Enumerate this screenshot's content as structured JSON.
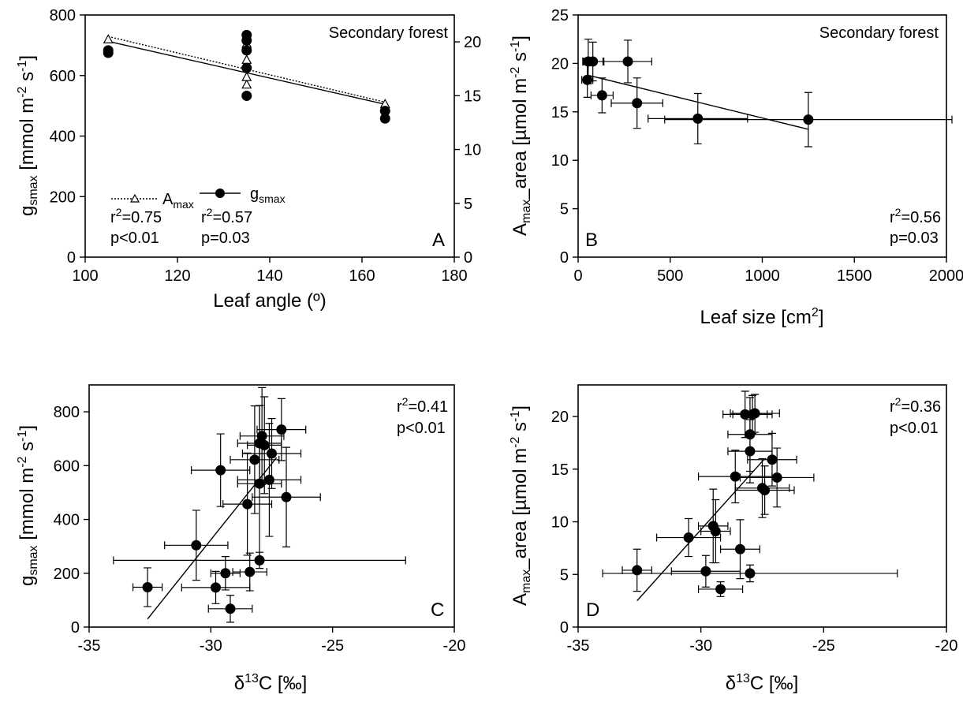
{
  "chart_data": [
    {
      "panel": "A",
      "type": "scatter",
      "panel_label": "A",
      "annotation": "Secondary forest",
      "xlabel": "Leaf angle (º)",
      "ylabel": "g_smax [mmol m-2 s-1]",
      "xlim": [
        100,
        180
      ],
      "ylim": [
        0,
        800
      ],
      "y2lim": [
        0,
        22.5
      ],
      "xticks": [
        100,
        120,
        140,
        160,
        180
      ],
      "yticks": [
        0,
        200,
        400,
        600,
        800
      ],
      "y2ticks": [
        0,
        5,
        10,
        15,
        20
      ],
      "legend": {
        "entries": [
          "A_max",
          "g_smax"
        ],
        "stats": [
          [
            "r²=0.75",
            "p<0.01"
          ],
          [
            "r²=0.57",
            "p=0.03"
          ]
        ],
        "placement": "lower-left"
      },
      "series": [
        {
          "name": "A_max",
          "axis": "right",
          "marker": "open-triangle",
          "points": [
            [
              105,
              20.2
            ],
            [
              135,
              16.0
            ],
            [
              135,
              16.7
            ],
            [
              135,
              18.0
            ],
            [
              135,
              18.3
            ],
            [
              135,
              19.8
            ],
            [
              165,
              14.2
            ]
          ],
          "fit": [
            [
              105,
              20.5
            ],
            [
              165,
              14.4
            ]
          ]
        },
        {
          "name": "g_smax",
          "axis": "left",
          "marker": "filled-circle",
          "points": [
            [
              105,
              675
            ],
            [
              105,
              683
            ],
            [
              135,
              533
            ],
            [
              135,
              625
            ],
            [
              135,
              683
            ],
            [
              135,
              716
            ],
            [
              135,
              734
            ],
            [
              165,
              458
            ],
            [
              165,
              483
            ]
          ],
          "fit": [
            [
              105,
              713
            ],
            [
              165,
              505
            ]
          ]
        }
      ]
    },
    {
      "panel": "B",
      "type": "scatter",
      "panel_label": "B",
      "annotation": "Secondary forest",
      "xlabel": "Leaf size [cm²]",
      "ylabel": "A_max_area [µmol m-2 s-1]",
      "xlim": [
        0,
        2000
      ],
      "ylim": [
        0,
        25
      ],
      "xticks": [
        0,
        500,
        1000,
        1500,
        2000
      ],
      "yticks": [
        0,
        5,
        10,
        15,
        20,
        25
      ],
      "stats": [
        "r²=0.56",
        "p=0.03"
      ],
      "points": [
        {
          "x": 50,
          "y": 18.3,
          "xerr": 30,
          "yerr": 1.8
        },
        {
          "x": 55,
          "y": 20.2,
          "xerr": 25,
          "yerr": 2.3
        },
        {
          "x": 80,
          "y": 20.2,
          "xerr": 55,
          "yerr": 2.0
        },
        {
          "x": 130,
          "y": 16.7,
          "xerr": 60,
          "yerr": 1.8
        },
        {
          "x": 270,
          "y": 20.2,
          "xerr": 130,
          "yerr": 2.2
        },
        {
          "x": 320,
          "y": 15.9,
          "xerr": 140,
          "yerr": 2.6
        },
        {
          "x": 650,
          "y": 14.3,
          "xerr": 270,
          "yerr": 2.6
        },
        {
          "x": 1250,
          "y": 14.2,
          "xerr": 780,
          "yerr": 2.8
        }
      ],
      "fit": [
        [
          50,
          18.8
        ],
        [
          1250,
          13.2
        ]
      ]
    },
    {
      "panel": "C",
      "type": "scatter",
      "panel_label": "C",
      "xlabel": "δ13C [‰]",
      "ylabel": "g_smax [mmol m-2 s-1]",
      "xlim": [
        -35,
        -20
      ],
      "ylim": [
        0,
        900
      ],
      "xticks": [
        -35,
        -30,
        -25,
        -20
      ],
      "yticks": [
        0,
        200,
        400,
        600,
        800
      ],
      "stats": [
        "r²=0.41",
        "p<0.01"
      ],
      "points": [
        {
          "x": -32.6,
          "y": 148,
          "xerr": 0.6,
          "yerr": 72
        },
        {
          "x": -30.6,
          "y": 304,
          "xerr": 1.3,
          "yerr": 130
        },
        {
          "x": -29.6,
          "y": 583,
          "xerr": 1.2,
          "yerr": 135
        },
        {
          "x": -29.8,
          "y": 147,
          "xerr": 1.4,
          "yerr": 60
        },
        {
          "x": -29.4,
          "y": 200,
          "xerr": 0.6,
          "yerr": 62
        },
        {
          "x": -29.2,
          "y": 68,
          "xerr": 0.9,
          "yerr": 50
        },
        {
          "x": -28.5,
          "y": 457,
          "xerr": 1.0,
          "yerr": 190
        },
        {
          "x": -28.4,
          "y": 205,
          "xerr": 0.7,
          "yerr": 70
        },
        {
          "x": -28.2,
          "y": 622,
          "xerr": 1.0,
          "yerr": 200
        },
        {
          "x": -28.0,
          "y": 683,
          "xerr": 0.9,
          "yerr": 140
        },
        {
          "x": -28.0,
          "y": 533,
          "xerr": 0.9,
          "yerr": 290
        },
        {
          "x": -27.9,
          "y": 710,
          "xerr": 0.9,
          "yerr": 180
        },
        {
          "x": -28.0,
          "y": 248,
          "xerr": 6.0,
          "yerr": 30
        },
        {
          "x": -27.8,
          "y": 676,
          "xerr": 0.7,
          "yerr": 180
        },
        {
          "x": -27.6,
          "y": 547,
          "xerr": 1.3,
          "yerr": 210
        },
        {
          "x": -27.5,
          "y": 645,
          "xerr": 1.2,
          "yerr": 130
        },
        {
          "x": -27.1,
          "y": 734,
          "xerr": 1.0,
          "yerr": 115
        },
        {
          "x": -26.9,
          "y": 483,
          "xerr": 1.4,
          "yerr": 185
        }
      ],
      "fit": [
        [
          -32.6,
          30
        ],
        [
          -27.3,
          630
        ]
      ]
    },
    {
      "panel": "D",
      "type": "scatter",
      "panel_label": "D",
      "xlabel": "δ13C [‰]",
      "ylabel": "A_max_area [µmol m-2 s-1]",
      "xlim": [
        -35,
        -20
      ],
      "ylim": [
        0,
        23
      ],
      "xticks": [
        -35,
        -30,
        -25,
        -20
      ],
      "yticks": [
        0,
        5,
        10,
        15,
        20
      ],
      "stats": [
        "r²=0.36",
        "p<0.01"
      ],
      "points": [
        {
          "x": -32.6,
          "y": 5.4,
          "xerr": 0.6,
          "yerr": 2.0
        },
        {
          "x": -30.5,
          "y": 8.5,
          "xerr": 1.3,
          "yerr": 1.8
        },
        {
          "x": -29.8,
          "y": 5.3,
          "xerr": 1.4,
          "yerr": 1.5
        },
        {
          "x": -29.5,
          "y": 9.6,
          "xerr": 0.6,
          "yerr": 3.5
        },
        {
          "x": -29.4,
          "y": 9.1,
          "xerr": 0.6,
          "yerr": 3.0
        },
        {
          "x": -29.2,
          "y": 3.6,
          "xerr": 0.9,
          "yerr": 0.7
        },
        {
          "x": -28.6,
          "y": 14.3,
          "xerr": 1.5,
          "yerr": 2.5
        },
        {
          "x": -28.4,
          "y": 7.4,
          "xerr": 0.8,
          "yerr": 2.8
        },
        {
          "x": -28.2,
          "y": 20.2,
          "xerr": 0.9,
          "yerr": 2.2
        },
        {
          "x": -28.0,
          "y": 18.3,
          "xerr": 0.9,
          "yerr": 3.5
        },
        {
          "x": -28.0,
          "y": 16.7,
          "xerr": 0.9,
          "yerr": 3.0
        },
        {
          "x": -28.0,
          "y": 5.1,
          "xerr": 6.0,
          "yerr": 0.8
        },
        {
          "x": -27.9,
          "y": 20.2,
          "xerr": 0.8,
          "yerr": 1.8
        },
        {
          "x": -27.8,
          "y": 20.3,
          "xerr": 1.0,
          "yerr": 1.8
        },
        {
          "x": -27.5,
          "y": 13.2,
          "xerr": 1.1,
          "yerr": 2.8
        },
        {
          "x": -27.4,
          "y": 13.0,
          "xerr": 1.2,
          "yerr": 2.3
        },
        {
          "x": -27.1,
          "y": 15.9,
          "xerr": 1.0,
          "yerr": 2.5
        },
        {
          "x": -26.9,
          "y": 14.2,
          "xerr": 1.5,
          "yerr": 2.8
        }
      ],
      "fit": [
        [
          -32.6,
          2.5
        ],
        [
          -27.4,
          16.0
        ]
      ]
    }
  ],
  "text": {
    "a_annotation": "Secondary forest",
    "a_xlabel": "Leaf angle (º)",
    "a_legend_amax": "A",
    "a_legend_amax_sub": "max",
    "a_legend_gsmax": "g",
    "a_legend_gsmax_sub": "smax",
    "a_r2_1": "r",
    "a_r2_1_val": "=0.75",
    "a_p_1": "p<0.01",
    "a_r2_2": "r",
    "a_r2_2_val": "=0.57",
    "a_p_2": "p=0.03",
    "a_letter": "A",
    "b_annotation": "Secondary forest",
    "b_xlabel": "Leaf size [cm",
    "b_xlabel_end": "]",
    "b_r2": "r",
    "b_r2_val": "=0.56",
    "b_p": "p=0.03",
    "b_letter": "B",
    "c_xlabel_delta": "δ",
    "c_xlabel_sup": "13",
    "c_xlabel_rest": "C [‰]",
    "c_r2": "r",
    "c_r2_val": "=0.41",
    "c_p": "p<0.01",
    "c_letter": "C",
    "d_xlabel_delta": "δ",
    "d_xlabel_sup": "13",
    "d_xlabel_rest": "C [‰]",
    "d_r2": "r",
    "d_r2_val": "=0.36",
    "d_p": "p<0.01",
    "d_letter": "D",
    "sup2": "2",
    "ylabel_g": "g",
    "ylabel_g_sub": "smax",
    "ylabel_g_rest": " [mmol m",
    "ylabel_a": "A",
    "ylabel_a_sub": "max",
    "ylabel_a_rest": "_area [µmol m",
    "ylabel_m2": "-2",
    "ylabel_s": " s",
    "ylabel_s1": "-1",
    "ylabel_end": "]"
  }
}
